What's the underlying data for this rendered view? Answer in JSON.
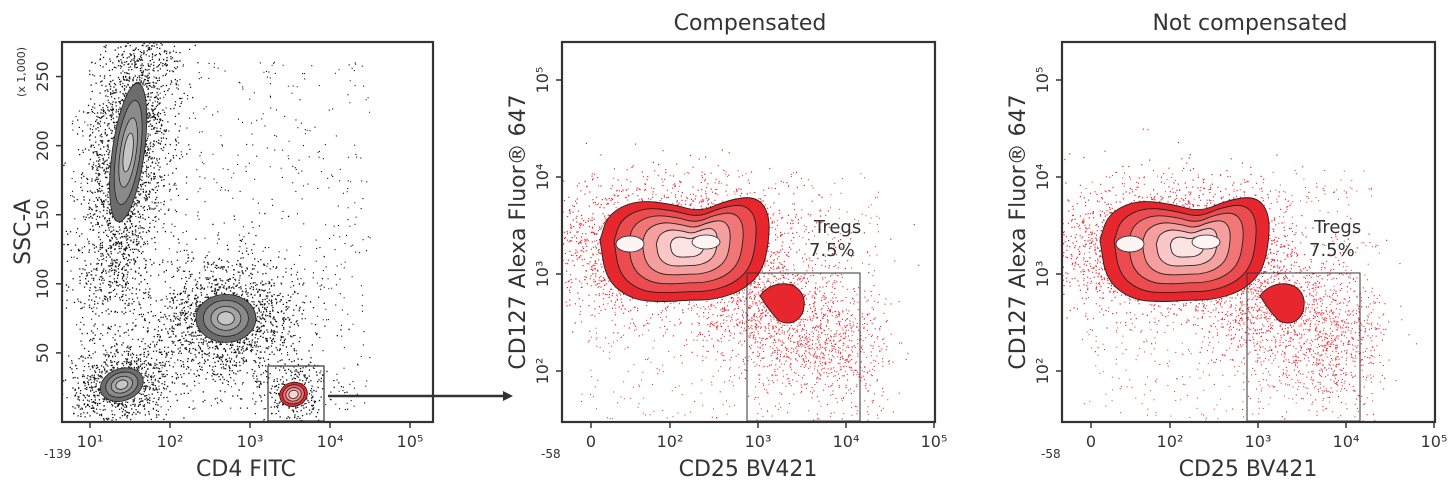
{
  "chart_data": [
    {
      "type": "scatter",
      "subtype": "flow-cytometry-density-contour",
      "title": "",
      "xlabel": "CD4 FITC",
      "ylabel": "SSC-A",
      "ylabel_scale_note": "(x 1,000)",
      "x_scale": "biexponential",
      "x_min_label": "-139",
      "x_ticks": [
        {
          "value": 10,
          "label": "10¹"
        },
        {
          "value": 100,
          "label": "10²"
        },
        {
          "value": 1000,
          "label": "10³"
        },
        {
          "value": 10000,
          "label": "10⁴"
        },
        {
          "value": 100000,
          "label": "10⁵"
        }
      ],
      "y_scale": "linear",
      "ylim": [
        0,
        275
      ],
      "y_ticks": [
        {
          "value": 50,
          "label": "50"
        },
        {
          "value": 100,
          "label": "100"
        },
        {
          "value": 150,
          "label": "150"
        },
        {
          "value": 200,
          "label": "200"
        },
        {
          "value": 250,
          "label": "250"
        }
      ],
      "populations": [
        {
          "id": "high-ssc",
          "x": 30,
          "y": 195,
          "color": "#777777"
        },
        {
          "id": "mid",
          "x": 500,
          "y": 75,
          "color": "#777777"
        },
        {
          "id": "low-ssc",
          "x": 25,
          "y": 27,
          "color": "#777777"
        },
        {
          "id": "cd4-positive",
          "x": 3500,
          "y": 20,
          "color": "#e8262d",
          "gated": true
        }
      ],
      "gate": {
        "x_range": [
          1500,
          8000
        ],
        "y_range": [
          5,
          40
        ]
      }
    },
    {
      "type": "scatter",
      "subtype": "flow-cytometry-density-contour",
      "title": "Compensated",
      "xlabel": "CD25 BV421",
      "ylabel": "CD127 Alexa Fluor® 647",
      "x_scale": "biexponential",
      "x_min_label": "-58",
      "x_ticks": [
        {
          "value": 0,
          "label": "0"
        },
        {
          "value": 100,
          "label": "10²"
        },
        {
          "value": 1000,
          "label": "10³"
        },
        {
          "value": 10000,
          "label": "10⁴"
        },
        {
          "value": 100000,
          "label": "10⁵"
        }
      ],
      "y_scale": "log",
      "y_ticks": [
        {
          "value": 100,
          "label": "10²"
        },
        {
          "value": 1000,
          "label": "10³"
        },
        {
          "value": 10000,
          "label": "10⁴"
        },
        {
          "value": 100000,
          "label": "10⁵"
        }
      ],
      "gate": {
        "name": "Tregs",
        "percent": "7.5%",
        "x_range": [
          1500,
          25000
        ],
        "y_range": [
          25,
          1000
        ]
      },
      "color": "#e8262d"
    },
    {
      "type": "scatter",
      "subtype": "flow-cytometry-density-contour",
      "title": "Not compensated",
      "xlabel": "CD25 BV421",
      "ylabel": "CD127 Alexa Fluor® 647",
      "x_scale": "biexponential",
      "x_min_label": "-58",
      "x_ticks": [
        {
          "value": 0,
          "label": "0"
        },
        {
          "value": 100,
          "label": "10²"
        },
        {
          "value": 1000,
          "label": "10³"
        },
        {
          "value": 10000,
          "label": "10⁴"
        },
        {
          "value": 100000,
          "label": "10⁵"
        }
      ],
      "y_scale": "log",
      "y_ticks": [
        {
          "value": 100,
          "label": "10²"
        },
        {
          "value": 1000,
          "label": "10³"
        },
        {
          "value": 10000,
          "label": "10⁴"
        },
        {
          "value": 100000,
          "label": "10⁵"
        }
      ],
      "gate": {
        "name": "Tregs",
        "percent": "7.5%",
        "x_range": [
          1500,
          25000
        ],
        "y_range": [
          25,
          1000
        ]
      },
      "color": "#e8262d"
    }
  ]
}
